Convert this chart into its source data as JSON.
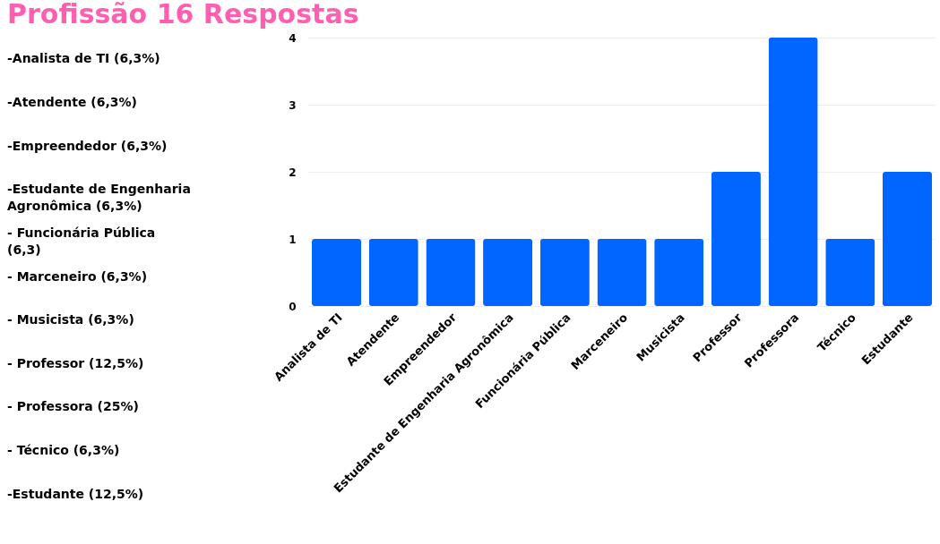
{
  "chart_data": {
    "type": "bar",
    "title": "Profissão 16 Respostas",
    "categories": [
      "Analista de TI",
      "Atendente",
      "Empreendedor",
      "Estudante de Engenharia Agronômica",
      "Funcionária Pública",
      "Marceneiro",
      "Musicista",
      "Professor",
      "Professora",
      "Técnico",
      "Estudante"
    ],
    "values": [
      1,
      1,
      1,
      1,
      1,
      1,
      1,
      2,
      4,
      1,
      2
    ],
    "color": "#0066ff",
    "ylim": [
      0,
      4
    ],
    "yticks": [
      0,
      1,
      2,
      3,
      4
    ],
    "grid": "y",
    "annotations": [
      "-Analista de TI (6,3%)",
      "-Atendente (6,3%)",
      "-Empreendedor (6,3%)",
      "-Estudante de Engenharia Agronômica (6,3%)",
      "- Funcionária Pública (6,3)",
      "- Marceneiro (6,3%)",
      "- Musicista (6,3%)",
      "- Professor (12,5%)",
      "- Professora (25%)",
      "- Técnico (6,3%)",
      "-Estudante (12,5%)"
    ]
  }
}
